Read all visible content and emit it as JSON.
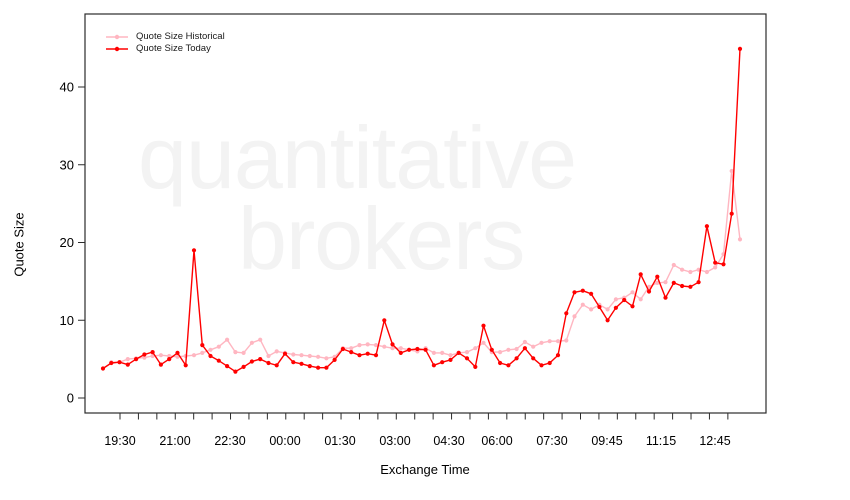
{
  "watermark": {
    "line1": "quantitative",
    "line2": "brokers"
  },
  "legend": {
    "items": [
      {
        "label": "Quote Size Historical",
        "color": "#ffb6c1"
      },
      {
        "label": "Quote Size Today",
        "color": "#ff0000"
      }
    ]
  },
  "chart_data": {
    "type": "line",
    "title": "",
    "xlabel": "Exchange Time",
    "ylabel": "Quote Size",
    "x_tick_labels": [
      "19:30",
      "21:00",
      "22:30",
      "00:00",
      "01:30",
      "03:00",
      "04:30",
      "06:00",
      "07:30",
      "09:45",
      "11:15",
      "12:45"
    ],
    "y_ticks": [
      0,
      10,
      20,
      30,
      40
    ],
    "ylim": [
      0,
      49
    ],
    "grid": false,
    "legend_position": "top-left",
    "point_interval_minutes": 15,
    "series": [
      {
        "name": "Quote Size Historical",
        "color": "#ffb6c1",
        "x_offset_steps": 1,
        "values": [
          4.6,
          4.6,
          5.0,
          5.1,
          5.2,
          5.4,
          5.5,
          5.4,
          5.3,
          5.4,
          5.5,
          5.8,
          6.2,
          6.6,
          7.5,
          5.9,
          5.8,
          7.1,
          7.5,
          5.4,
          6.0,
          5.8,
          5.6,
          5.5,
          5.4,
          5.3,
          5.1,
          5.3,
          6.4,
          6.4,
          6.8,
          6.9,
          6.8,
          6.6,
          6.4,
          6.4,
          6.2,
          6.0,
          6.4,
          5.8,
          5.8,
          5.5,
          5.8,
          5.9,
          6.4,
          7.1,
          5.9,
          5.9,
          6.2,
          6.3,
          7.2,
          6.6,
          7.1,
          7.3,
          7.3,
          7.4,
          10.5,
          12.0,
          11.4,
          12.0,
          11.4,
          12.7,
          12.9,
          13.6,
          12.7,
          14.3,
          14.8,
          14.9,
          17.1,
          16.5,
          16.2,
          16.5,
          16.2,
          16.8,
          18.5,
          29.2,
          20.4
        ]
      },
      {
        "name": "Quote Size Today",
        "color": "#ff0000",
        "x_offset_steps": 0,
        "values": [
          3.8,
          4.5,
          4.6,
          4.3,
          5.0,
          5.6,
          5.9,
          4.3,
          5.0,
          5.8,
          4.2,
          19.0,
          6.8,
          5.4,
          4.8,
          4.1,
          3.4,
          4.0,
          4.7,
          5.0,
          4.5,
          4.2,
          5.7,
          4.6,
          4.4,
          4.1,
          3.9,
          3.9,
          4.9,
          6.3,
          5.9,
          5.5,
          5.7,
          5.5,
          10.0,
          6.9,
          5.8,
          6.2,
          6.3,
          6.2,
          4.2,
          4.6,
          4.9,
          5.8,
          5.1,
          4.0,
          9.3,
          6.2,
          4.5,
          4.2,
          5.1,
          6.4,
          5.1,
          4.2,
          4.5,
          5.5,
          10.9,
          13.6,
          13.8,
          13.4,
          11.7,
          10.0,
          11.6,
          12.6,
          11.8,
          15.9,
          13.7,
          15.6,
          12.9,
          14.8,
          14.4,
          14.3,
          14.9,
          22.1,
          17.4,
          17.2,
          23.7,
          44.9
        ]
      }
    ]
  }
}
